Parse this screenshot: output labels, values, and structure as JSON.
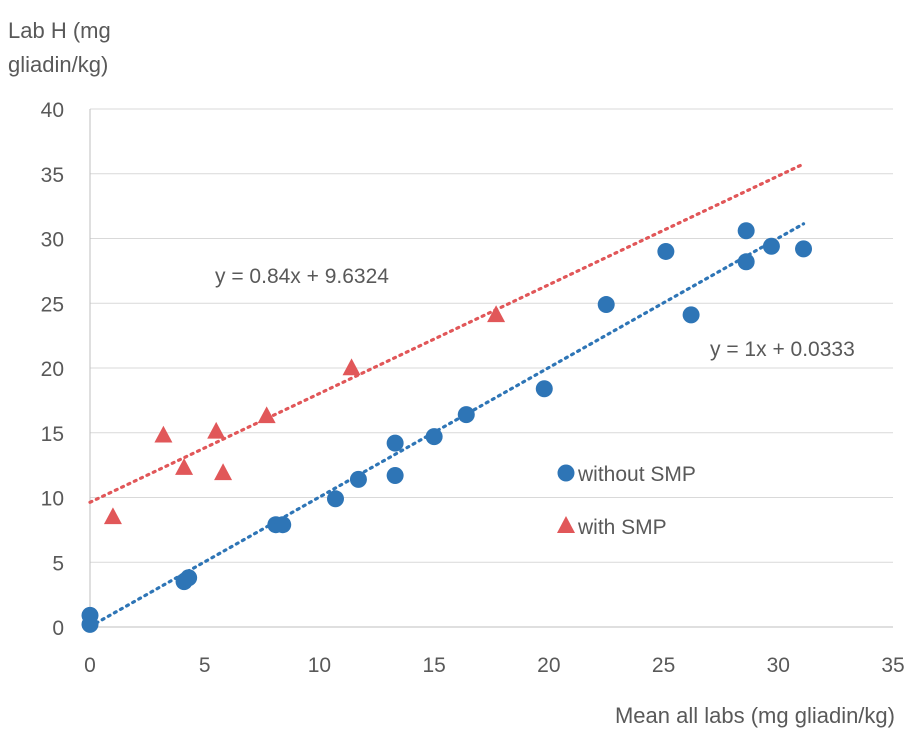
{
  "chart_data": {
    "type": "scatter",
    "ylabel_lines": [
      "Lab H (mg",
      "gliadin/kg)"
    ],
    "xlabel": "Mean all labs (mg gliadin/kg)",
    "xlim": [
      0,
      35
    ],
    "ylim": [
      0,
      40
    ],
    "x_ticks": [
      0,
      5,
      10,
      15,
      20,
      25,
      30,
      35
    ],
    "y_ticks": [
      0,
      5,
      10,
      15,
      20,
      25,
      30,
      35,
      40
    ],
    "grid": "horizontal",
    "legend_placement": "center-right",
    "series": [
      {
        "name": "without SMP",
        "marker": "circle",
        "color": "#2E75B6",
        "points": [
          [
            0,
            0.2
          ],
          [
            0,
            0.9
          ],
          [
            4.1,
            3.5
          ],
          [
            4.3,
            3.8
          ],
          [
            8.1,
            7.9
          ],
          [
            8.4,
            7.9
          ],
          [
            10.7,
            9.9
          ],
          [
            11.7,
            11.4
          ],
          [
            13.3,
            11.7
          ],
          [
            13.3,
            14.2
          ],
          [
            15.0,
            14.7
          ],
          [
            16.4,
            16.4
          ],
          [
            19.8,
            18.4
          ],
          [
            22.5,
            24.9
          ],
          [
            25.1,
            29.0
          ],
          [
            26.2,
            24.1
          ],
          [
            28.6,
            28.2
          ],
          [
            28.6,
            30.6
          ],
          [
            29.7,
            29.4
          ],
          [
            31.1,
            29.2
          ]
        ],
        "trendline": {
          "slope": 1,
          "intercept": 0.0333,
          "x_range": [
            0,
            31.1
          ]
        },
        "equation": "y = 1x + 0.0333"
      },
      {
        "name": "with SMP",
        "marker": "triangle",
        "color": "#E15759",
        "points": [
          [
            1.0,
            8.5
          ],
          [
            3.2,
            14.8
          ],
          [
            4.1,
            12.3
          ],
          [
            5.5,
            15.1
          ],
          [
            5.8,
            11.9
          ],
          [
            7.7,
            16.3
          ],
          [
            11.4,
            20.0
          ],
          [
            17.7,
            24.1
          ]
        ],
        "trendline": {
          "slope": 0.84,
          "intercept": 9.6324,
          "x_range": [
            0,
            31.1
          ]
        },
        "equation": "y = 0.84x + 9.6324"
      }
    ]
  }
}
